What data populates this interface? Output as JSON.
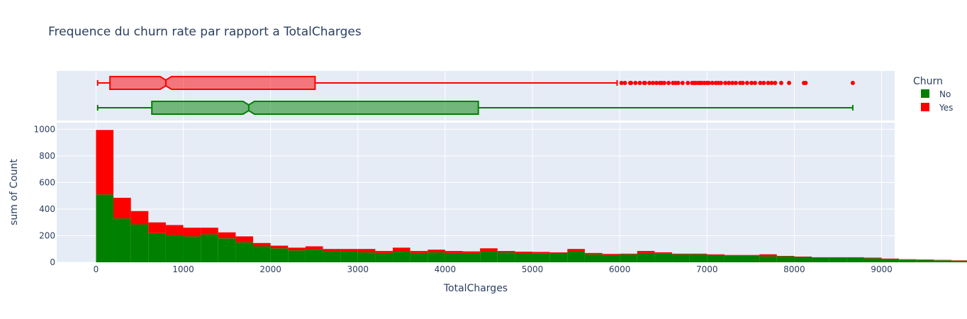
{
  "chart_data": {
    "type": "histogram",
    "title": "Frequence du churn rate par rapport a TotalCharges",
    "xlabel": "TotalCharges",
    "ylabel": "sum of Count",
    "xlim": [
      -450,
      9150
    ],
    "ylim": [
      0,
      1050
    ],
    "x_ticks": [
      0,
      1000,
      2000,
      3000,
      4000,
      5000,
      6000,
      7000,
      8000,
      9000
    ],
    "y_ticks": [
      0,
      200,
      400,
      600,
      800,
      1000
    ],
    "grid": true,
    "barmode": "stack",
    "bin_start": 0,
    "bin_width": 200,
    "colors": {
      "No": "#008000",
      "Yes": "#ff0000",
      "plot_bg": "#e5ecf6"
    },
    "legend": {
      "title": "Churn",
      "position": "top-right",
      "entries": [
        "No",
        "Yes"
      ]
    },
    "series": [
      {
        "name": "No",
        "values": [
          510,
          330,
          285,
          220,
          205,
          195,
          210,
          180,
          150,
          120,
          105,
          90,
          95,
          85,
          80,
          75,
          70,
          80,
          70,
          75,
          70,
          70,
          80,
          75,
          70,
          68,
          70,
          80,
          60,
          55,
          60,
          70,
          65,
          60,
          60,
          55,
          50,
          50,
          45,
          45,
          40,
          35,
          35,
          35,
          30,
          25,
          20,
          18,
          15,
          12,
          10
        ]
      },
      {
        "name": "Yes",
        "values": [
          485,
          155,
          100,
          80,
          75,
          65,
          50,
          45,
          45,
          25,
          20,
          20,
          25,
          15,
          20,
          25,
          15,
          30,
          15,
          20,
          15,
          12,
          25,
          10,
          10,
          10,
          5,
          20,
          10,
          8,
          5,
          15,
          10,
          5,
          5,
          5,
          5,
          5,
          15,
          3,
          3,
          3,
          3,
          3,
          5,
          3,
          3,
          3,
          3,
          3,
          3
        ]
      }
    ],
    "box_plots": [
      {
        "name": "Yes",
        "min": 19,
        "q1": 160,
        "median": 800,
        "q3": 2510,
        "upper_fence": 5970,
        "outliers": [
          6020,
          6060,
          6120,
          6130,
          6180,
          6230,
          6280,
          6290,
          6340,
          6380,
          6420,
          6460,
          6480,
          6510,
          6560,
          6610,
          6640,
          6670,
          6720,
          6780,
          6830,
          6850,
          6870,
          6900,
          6920,
          6940,
          6970,
          7000,
          7020,
          7060,
          7100,
          7130,
          7160,
          7210,
          7250,
          7290,
          7330,
          7380,
          7410,
          7460,
          7510,
          7550,
          7610,
          7650,
          7700,
          7740,
          7780,
          7850,
          7940,
          8110,
          8130,
          8670
        ]
      },
      {
        "name": "No",
        "min": 19,
        "q1": 640,
        "median": 1750,
        "q3": 4380,
        "max": 8670
      }
    ]
  }
}
